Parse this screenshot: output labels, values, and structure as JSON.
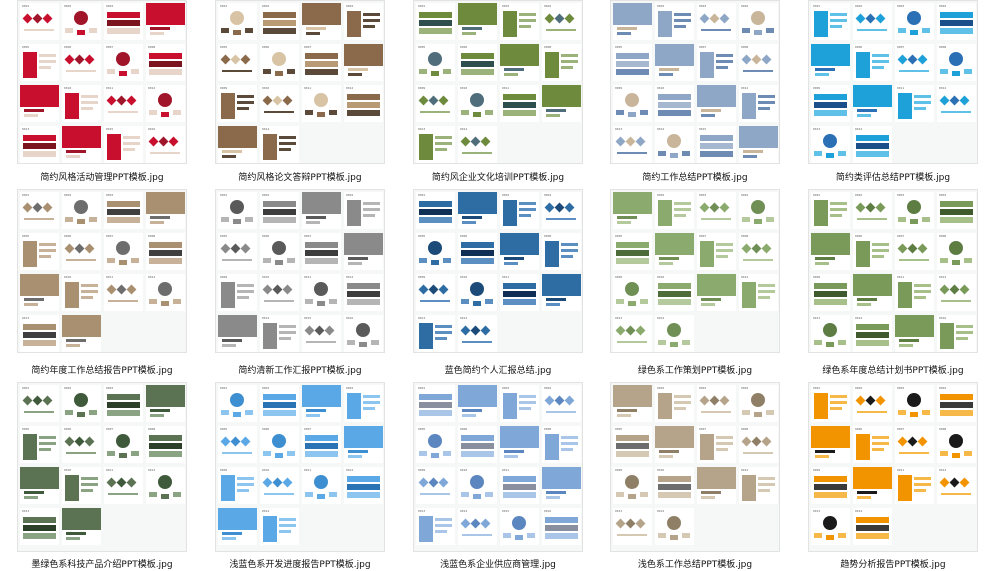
{
  "files": [
    {
      "name": "简约风格活动管理PPT模板.jpg",
      "palette": [
        "#c8102e",
        "#a0152a",
        "#e7d5c9",
        "#7c1420"
      ]
    },
    {
      "name": "简约风格论文答辩PPT模板.jpg",
      "palette": [
        "#8a6a4a",
        "#d8c3a5",
        "#5b4a3a",
        "#b89a74"
      ]
    },
    {
      "name": "简约风企业文化培训PPT模板.jpg",
      "palette": [
        "#6e8b3d",
        "#4f6d7a",
        "#9bb37a",
        "#2f4f4f"
      ]
    },
    {
      "name": "简约工作总结PPT模板.jpg",
      "palette": [
        "#8fa7c6",
        "#c8b59a",
        "#6d8bb3",
        "#a6b8cf"
      ]
    },
    {
      "name": "简约类评估总结PPT模板.jpg",
      "palette": [
        "#1ea0d8",
        "#2b6fb5",
        "#5fc0e8",
        "#1b4f8a"
      ]
    },
    {
      "name": "简约年度工作总结报告PPT模板.jpg",
      "palette": [
        "#a89070",
        "#6d6d6d",
        "#c7b299",
        "#3f3f3f"
      ]
    },
    {
      "name": "简约清新工作汇报PPT模板.jpg",
      "palette": [
        "#8a8a8a",
        "#5a5a5a",
        "#b5b5b5",
        "#3d3d3d"
      ]
    },
    {
      "name": "蓝色简约个人汇报总结.jpg",
      "palette": [
        "#2e6da4",
        "#1c4b7a",
        "#5b8fc2",
        "#0f2f55"
      ]
    },
    {
      "name": "绿色系工作策划PPT模板.jpg",
      "palette": [
        "#8bab6e",
        "#6f8f55",
        "#b4c99c",
        "#4e6b3a"
      ]
    },
    {
      "name": "绿色系年度总结计划书PPT模板.jpg",
      "palette": [
        "#7a9a5a",
        "#5d7d43",
        "#a7c08a",
        "#3f5a2c"
      ]
    },
    {
      "name": "墨绿色系科技产品介绍PPT模板.jpg",
      "palette": [
        "#5b7352",
        "#3f5a3a",
        "#8aa383",
        "#2c3f28"
      ]
    },
    {
      "name": "浅蓝色系开发进度报告PPT模板.jpg",
      "palette": [
        "#5aa9e6",
        "#3d8fd1",
        "#8cc6f0",
        "#2a73b5"
      ]
    },
    {
      "name": "浅蓝色系企业供应商管理.jpg",
      "palette": [
        "#7fa7d8",
        "#5b86bf",
        "#a9c6e8",
        "#8a8fa0"
      ]
    },
    {
      "name": "浅色系工作总结PPT模板.jpg",
      "palette": [
        "#b5a48a",
        "#8f7f67",
        "#d6c9b3",
        "#6d6d6d"
      ]
    },
    {
      "name": "趋势分析报告PPT模板.jpg",
      "palette": [
        "#f29400",
        "#1a1a1a",
        "#f7b84a",
        "#3a3a3a"
      ]
    }
  ]
}
